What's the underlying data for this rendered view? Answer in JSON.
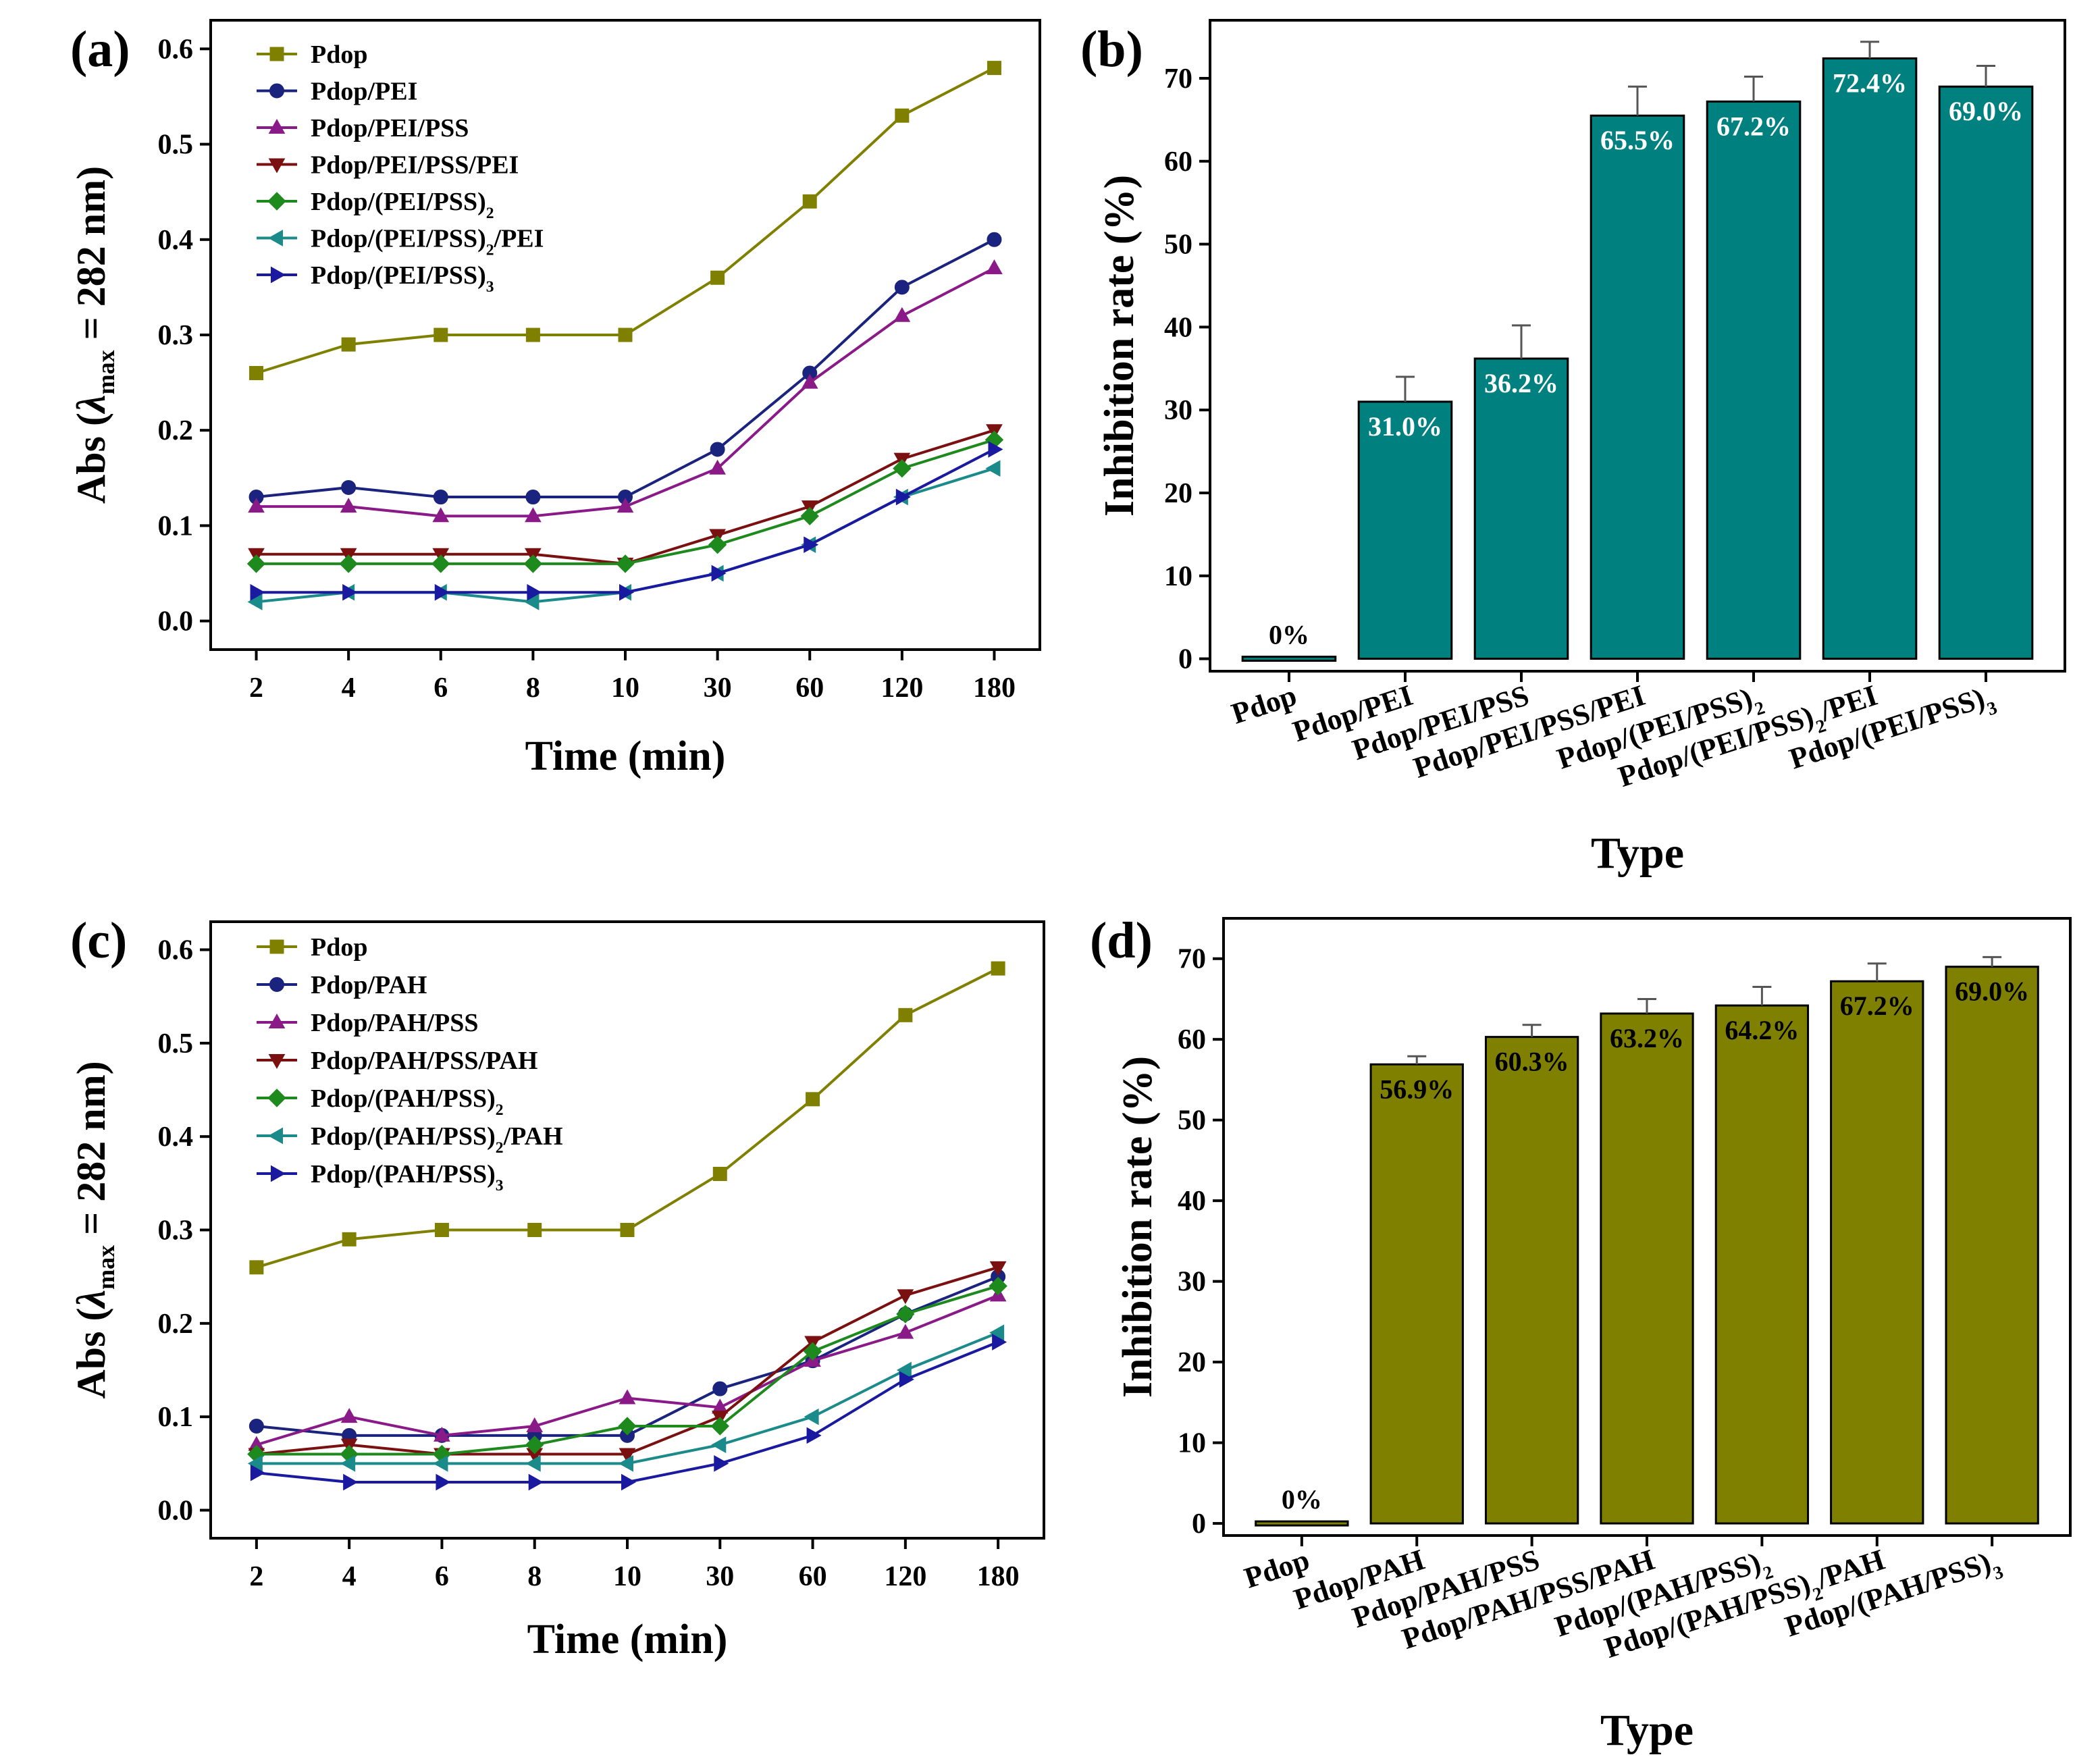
{
  "chart_data": [
    {
      "panel": "(a)",
      "type": "line",
      "categories": [
        "2",
        "4",
        "6",
        "8",
        "10",
        "30",
        "60",
        "120",
        "180"
      ],
      "xlabel": "Time (min)",
      "ylabel": {
        "pre": "Abs (",
        "lambda": "λ",
        "sub": "max",
        "post": " = 282 nm)"
      },
      "ylim": [
        -0.03,
        0.63
      ],
      "yticks": [
        0.0,
        0.1,
        0.2,
        0.3,
        0.4,
        0.5,
        0.6
      ],
      "ytick_labels": [
        "0.0",
        "0.1",
        "0.2",
        "0.3",
        "0.4",
        "0.5",
        "0.6"
      ],
      "legend_position": "top-left",
      "series": [
        {
          "name": "Pdop",
          "label": {
            "main": "Pdop",
            "sub": "",
            "tail": ""
          },
          "marker": "square",
          "color": "#808000",
          "values": [
            0.26,
            0.29,
            0.3,
            0.3,
            0.3,
            0.36,
            0.44,
            0.53,
            0.58
          ]
        },
        {
          "name": "Pdop/PEI",
          "label": {
            "main": "Pdop/PEI",
            "sub": "",
            "tail": ""
          },
          "marker": "circle",
          "color": "#1a237e",
          "values": [
            0.13,
            0.14,
            0.13,
            0.13,
            0.13,
            0.18,
            0.26,
            0.35,
            0.4
          ]
        },
        {
          "name": "Pdop/PEI/PSS",
          "label": {
            "main": "Pdop/PEI/PSS",
            "sub": "",
            "tail": ""
          },
          "marker": "triangle-up",
          "color": "#8b1a89",
          "values": [
            0.12,
            0.12,
            0.11,
            0.11,
            0.12,
            0.16,
            0.25,
            0.32,
            0.37
          ]
        },
        {
          "name": "Pdop/PEI/PSS/PEI",
          "label": {
            "main": "Pdop/PEI/PSS/PEI",
            "sub": "",
            "tail": ""
          },
          "marker": "triangle-down",
          "color": "#7b1010",
          "values": [
            0.07,
            0.07,
            0.07,
            0.07,
            0.06,
            0.09,
            0.12,
            0.17,
            0.2
          ]
        },
        {
          "name": "Pdop/(PEI/PSS)2",
          "label": {
            "main": "Pdop/(PEI/PSS)",
            "sub": "2",
            "tail": ""
          },
          "marker": "diamond",
          "color": "#1e8a1e",
          "values": [
            0.06,
            0.06,
            0.06,
            0.06,
            0.06,
            0.08,
            0.11,
            0.16,
            0.19
          ]
        },
        {
          "name": "Pdop/(PEI/PSS)2/PEI",
          "label": {
            "main": "Pdop/(PEI/PSS)",
            "sub": "2",
            "tail": "/PEI"
          },
          "marker": "triangle-left",
          "color": "#1a8a8a",
          "values": [
            0.02,
            0.03,
            0.03,
            0.02,
            0.03,
            0.05,
            0.08,
            0.13,
            0.16
          ]
        },
        {
          "name": "Pdop/(PEI/PSS)3",
          "label": {
            "main": "Pdop/(PEI/PSS)",
            "sub": "3",
            "tail": ""
          },
          "marker": "triangle-right",
          "color": "#1a1aa0",
          "values": [
            0.03,
            0.03,
            0.03,
            0.03,
            0.03,
            0.05,
            0.08,
            0.13,
            0.18
          ]
        }
      ]
    },
    {
      "panel": "(b)",
      "type": "bar",
      "color": "#00807f",
      "categories": [
        "Pdop",
        "Pdop/PEI",
        "Pdop/PEI/PSS",
        "Pdop/PEI/PSS/PEI",
        "Pdop/(PEI/PSS)2",
        "Pdop/(PEI/PSS)2/PEI",
        "Pdop/(PEI/PSS)3"
      ],
      "category_labels": [
        {
          "main": "Pdop",
          "sub": "",
          "tail": ""
        },
        {
          "main": "Pdop/PEI",
          "sub": "",
          "tail": ""
        },
        {
          "main": "Pdop/PEI/PSS",
          "sub": "",
          "tail": ""
        },
        {
          "main": "Pdop/PEI/PSS/PEI",
          "sub": "",
          "tail": ""
        },
        {
          "main": "Pdop/(PEI/PSS)",
          "sub": "2",
          "tail": ""
        },
        {
          "main": "Pdop/(PEI/PSS)",
          "sub": "2",
          "tail": "/PEI"
        },
        {
          "main": "Pdop/(PEI/PSS)",
          "sub": "3",
          "tail": ""
        }
      ],
      "values": [
        0,
        31.0,
        36.2,
        65.5,
        67.2,
        72.4,
        69.0
      ],
      "errors": [
        0,
        3.0,
        4.0,
        3.5,
        3.0,
        2.0,
        2.5
      ],
      "data_labels": [
        "0%",
        "31.0%",
        "36.2%",
        "65.5%",
        "67.2%",
        "72.4%",
        "69.0%"
      ],
      "xlabel": "Type",
      "ylabel": "Inhibition rate (%)",
      "ylim": [
        -1.5,
        77
      ],
      "yticks": [
        0,
        10,
        20,
        30,
        40,
        50,
        60,
        70
      ],
      "ytick_labels": [
        "0",
        "10",
        "20",
        "30",
        "40",
        "50",
        "60",
        "70"
      ]
    },
    {
      "panel": "(c)",
      "type": "line",
      "categories": [
        "2",
        "4",
        "6",
        "8",
        "10",
        "30",
        "60",
        "120",
        "180"
      ],
      "xlabel": "Time (min)",
      "ylabel": {
        "pre": "Abs (",
        "lambda": "λ",
        "sub": "max",
        "post": " = 282 nm)"
      },
      "ylim": [
        -0.03,
        0.63
      ],
      "yticks": [
        0.0,
        0.1,
        0.2,
        0.3,
        0.4,
        0.5,
        0.6
      ],
      "ytick_labels": [
        "0.0",
        "0.1",
        "0.2",
        "0.3",
        "0.4",
        "0.5",
        "0.6"
      ],
      "legend_position": "top-left",
      "series": [
        {
          "name": "Pdop",
          "label": {
            "main": "Pdop",
            "sub": "",
            "tail": ""
          },
          "marker": "square",
          "color": "#808000",
          "values": [
            0.26,
            0.29,
            0.3,
            0.3,
            0.3,
            0.36,
            0.44,
            0.53,
            0.58
          ]
        },
        {
          "name": "Pdop/PAH",
          "label": {
            "main": "Pdop/PAH",
            "sub": "",
            "tail": ""
          },
          "marker": "circle",
          "color": "#1a237e",
          "values": [
            0.09,
            0.08,
            0.08,
            0.08,
            0.08,
            0.13,
            0.16,
            0.21,
            0.25
          ]
        },
        {
          "name": "Pdop/PAH/PSS",
          "label": {
            "main": "Pdop/PAH/PSS",
            "sub": "",
            "tail": ""
          },
          "marker": "triangle-up",
          "color": "#8b1a89",
          "values": [
            0.07,
            0.1,
            0.08,
            0.09,
            0.12,
            0.11,
            0.16,
            0.19,
            0.23
          ]
        },
        {
          "name": "Pdop/PAH/PSS/PAH",
          "label": {
            "main": "Pdop/PAH/PSS/PAH",
            "sub": "",
            "tail": ""
          },
          "marker": "triangle-down",
          "color": "#7b1010",
          "values": [
            0.06,
            0.07,
            0.06,
            0.06,
            0.06,
            0.1,
            0.18,
            0.23,
            0.26
          ]
        },
        {
          "name": "Pdop/(PAH/PSS)2",
          "label": {
            "main": "Pdop/(PAH/PSS)",
            "sub": "2",
            "tail": ""
          },
          "marker": "diamond",
          "color": "#1e8a1e",
          "values": [
            0.06,
            0.06,
            0.06,
            0.07,
            0.09,
            0.09,
            0.17,
            0.21,
            0.24
          ]
        },
        {
          "name": "Pdop/(PAH/PSS)2/PAH",
          "label": {
            "main": "Pdop/(PAH/PSS)",
            "sub": "2",
            "tail": "/PAH"
          },
          "marker": "triangle-left",
          "color": "#1a8a8a",
          "values": [
            0.05,
            0.05,
            0.05,
            0.05,
            0.05,
            0.07,
            0.1,
            0.15,
            0.19
          ]
        },
        {
          "name": "Pdop/(PAH/PSS)3",
          "label": {
            "main": "Pdop/(PAH/PSS)",
            "sub": "3",
            "tail": ""
          },
          "marker": "triangle-right",
          "color": "#1a1aa0",
          "values": [
            0.04,
            0.03,
            0.03,
            0.03,
            0.03,
            0.05,
            0.08,
            0.14,
            0.18
          ]
        }
      ]
    },
    {
      "panel": "(d)",
      "type": "bar",
      "color": "#808000",
      "categories": [
        "Pdop",
        "Pdop/PAH",
        "Pdop/PAH/PSS",
        "Pdop/PAH/PSS/PAH",
        "Pdop/(PAH/PSS)2",
        "Pdop/(PAH/PSS)2/PAH",
        "Pdop/(PAH/PSS)3"
      ],
      "category_labels": [
        {
          "main": "Pdop",
          "sub": "",
          "tail": ""
        },
        {
          "main": "Pdop/PAH",
          "sub": "",
          "tail": ""
        },
        {
          "main": "Pdop/PAH/PSS",
          "sub": "",
          "tail": ""
        },
        {
          "main": "Pdop/PAH/PSS/PAH",
          "sub": "",
          "tail": ""
        },
        {
          "main": "Pdop/(PAH/PSS)",
          "sub": "2",
          "tail": ""
        },
        {
          "main": "Pdop/(PAH/PSS)",
          "sub": "2",
          "tail": "/PAH"
        },
        {
          "main": "Pdop/(PAH/PSS)",
          "sub": "3",
          "tail": ""
        }
      ],
      "values": [
        0,
        56.9,
        60.3,
        63.2,
        64.2,
        67.2,
        69.0
      ],
      "errors": [
        0,
        1.0,
        1.5,
        1.8,
        2.3,
        2.2,
        1.2
      ],
      "data_labels": [
        "0%",
        "56.9%",
        "60.3%",
        "63.2%",
        "64.2%",
        "67.2%",
        "69.0%"
      ],
      "xlabel": "Type",
      "ylabel": "Inhibition rate (%)",
      "ylim": [
        -1.5,
        75
      ],
      "yticks": [
        0,
        10,
        20,
        30,
        40,
        50,
        60,
        70
      ],
      "ytick_labels": [
        "0",
        "10",
        "20",
        "30",
        "40",
        "50",
        "60",
        "70"
      ]
    }
  ]
}
